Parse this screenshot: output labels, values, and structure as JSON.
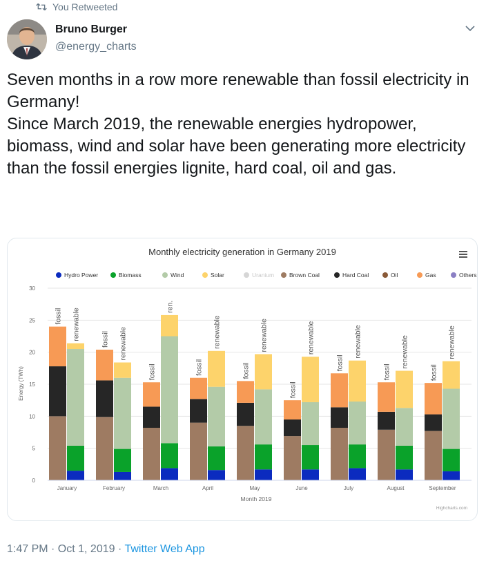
{
  "retweet": {
    "label": "You Retweeted",
    "icon": "retweet-icon"
  },
  "author": {
    "name": "Bruno Burger",
    "handle": "@energy_charts",
    "avatar": "avatar-photo"
  },
  "tweet": {
    "line1": "Seven months in a row more renewable than fossil electricity in Germany!",
    "line2": "Since March 2019, the renewable energies hydropower, biomass, wind and solar have been generating more electricity than the fossil energies lignite, hard coal, oil and gas."
  },
  "footer": {
    "time": "1:47 PM · Oct 1, 2019 · ",
    "app": "Twitter Web App"
  },
  "colors": {
    "hydro": "#0b2bbf",
    "biomass": "#0aa22a",
    "wind": "#b3cba8",
    "solar": "#fdd36b",
    "uranium": "#d6d6d6",
    "brown": "#9e7b62",
    "hardcoal": "#262626",
    "oil": "#8a5a38",
    "gas": "#f79a55",
    "others": "#8b7fc4"
  },
  "chart_data": {
    "type": "bar",
    "title": "Monthly electricity generation in Germany 2019",
    "xlabel": "Month 2019",
    "ylabel": "Energy (TWh)",
    "ylim": [
      0,
      30
    ],
    "yticks": [
      0,
      5,
      10,
      15,
      20,
      25,
      30
    ],
    "credit": "Highcharts.com",
    "legend": [
      {
        "key": "hydro",
        "label": "Hydro Power"
      },
      {
        "key": "biomass",
        "label": "Biomass"
      },
      {
        "key": "wind",
        "label": "Wind"
      },
      {
        "key": "solar",
        "label": "Solar"
      },
      {
        "key": "uranium",
        "label": "Uranium"
      },
      {
        "key": "brown",
        "label": "Brown Coal"
      },
      {
        "key": "hardcoal",
        "label": "Hard Coal"
      },
      {
        "key": "oil",
        "label": "Oil"
      },
      {
        "key": "gas",
        "label": "Gas"
      },
      {
        "key": "others",
        "label": "Others"
      }
    ],
    "categories": [
      "January",
      "February",
      "March",
      "April",
      "May",
      "June",
      "July",
      "August",
      "September"
    ],
    "fossil_label": "fossil",
    "renewable_label": "renewable",
    "renewable_label_short": "ren.",
    "fossil": [
      {
        "brown": 10.0,
        "hardcoal": 7.8,
        "gas": 6.2
      },
      {
        "brown": 9.9,
        "hardcoal": 5.7,
        "gas": 4.8
      },
      {
        "brown": 8.2,
        "hardcoal": 3.3,
        "gas": 3.8
      },
      {
        "brown": 9.0,
        "hardcoal": 3.7,
        "gas": 3.3
      },
      {
        "brown": 8.5,
        "hardcoal": 3.6,
        "gas": 3.4
      },
      {
        "brown": 6.9,
        "hardcoal": 2.6,
        "gas": 3.0
      },
      {
        "brown": 8.2,
        "hardcoal": 3.2,
        "gas": 5.3
      },
      {
        "brown": 7.9,
        "hardcoal": 2.8,
        "gas": 4.6
      },
      {
        "brown": 7.7,
        "hardcoal": 2.6,
        "gas": 4.9
      }
    ],
    "renewable": [
      {
        "hydro": 1.5,
        "biomass": 3.9,
        "wind": 15.1,
        "solar": 0.9
      },
      {
        "hydro": 1.3,
        "biomass": 3.6,
        "wind": 11.1,
        "solar": 2.4
      },
      {
        "hydro": 1.9,
        "biomass": 3.9,
        "wind": 16.7,
        "solar": 3.3
      },
      {
        "hydro": 1.6,
        "biomass": 3.7,
        "wind": 9.3,
        "solar": 5.6
      },
      {
        "hydro": 1.7,
        "biomass": 3.9,
        "wind": 8.6,
        "solar": 5.5
      },
      {
        "hydro": 1.7,
        "biomass": 3.8,
        "wind": 6.7,
        "solar": 7.1
      },
      {
        "hydro": 1.9,
        "biomass": 3.7,
        "wind": 6.7,
        "solar": 6.4
      },
      {
        "hydro": 1.7,
        "biomass": 3.7,
        "wind": 5.9,
        "solar": 5.8
      },
      {
        "hydro": 1.4,
        "biomass": 3.5,
        "wind": 9.4,
        "solar": 4.3
      }
    ]
  }
}
